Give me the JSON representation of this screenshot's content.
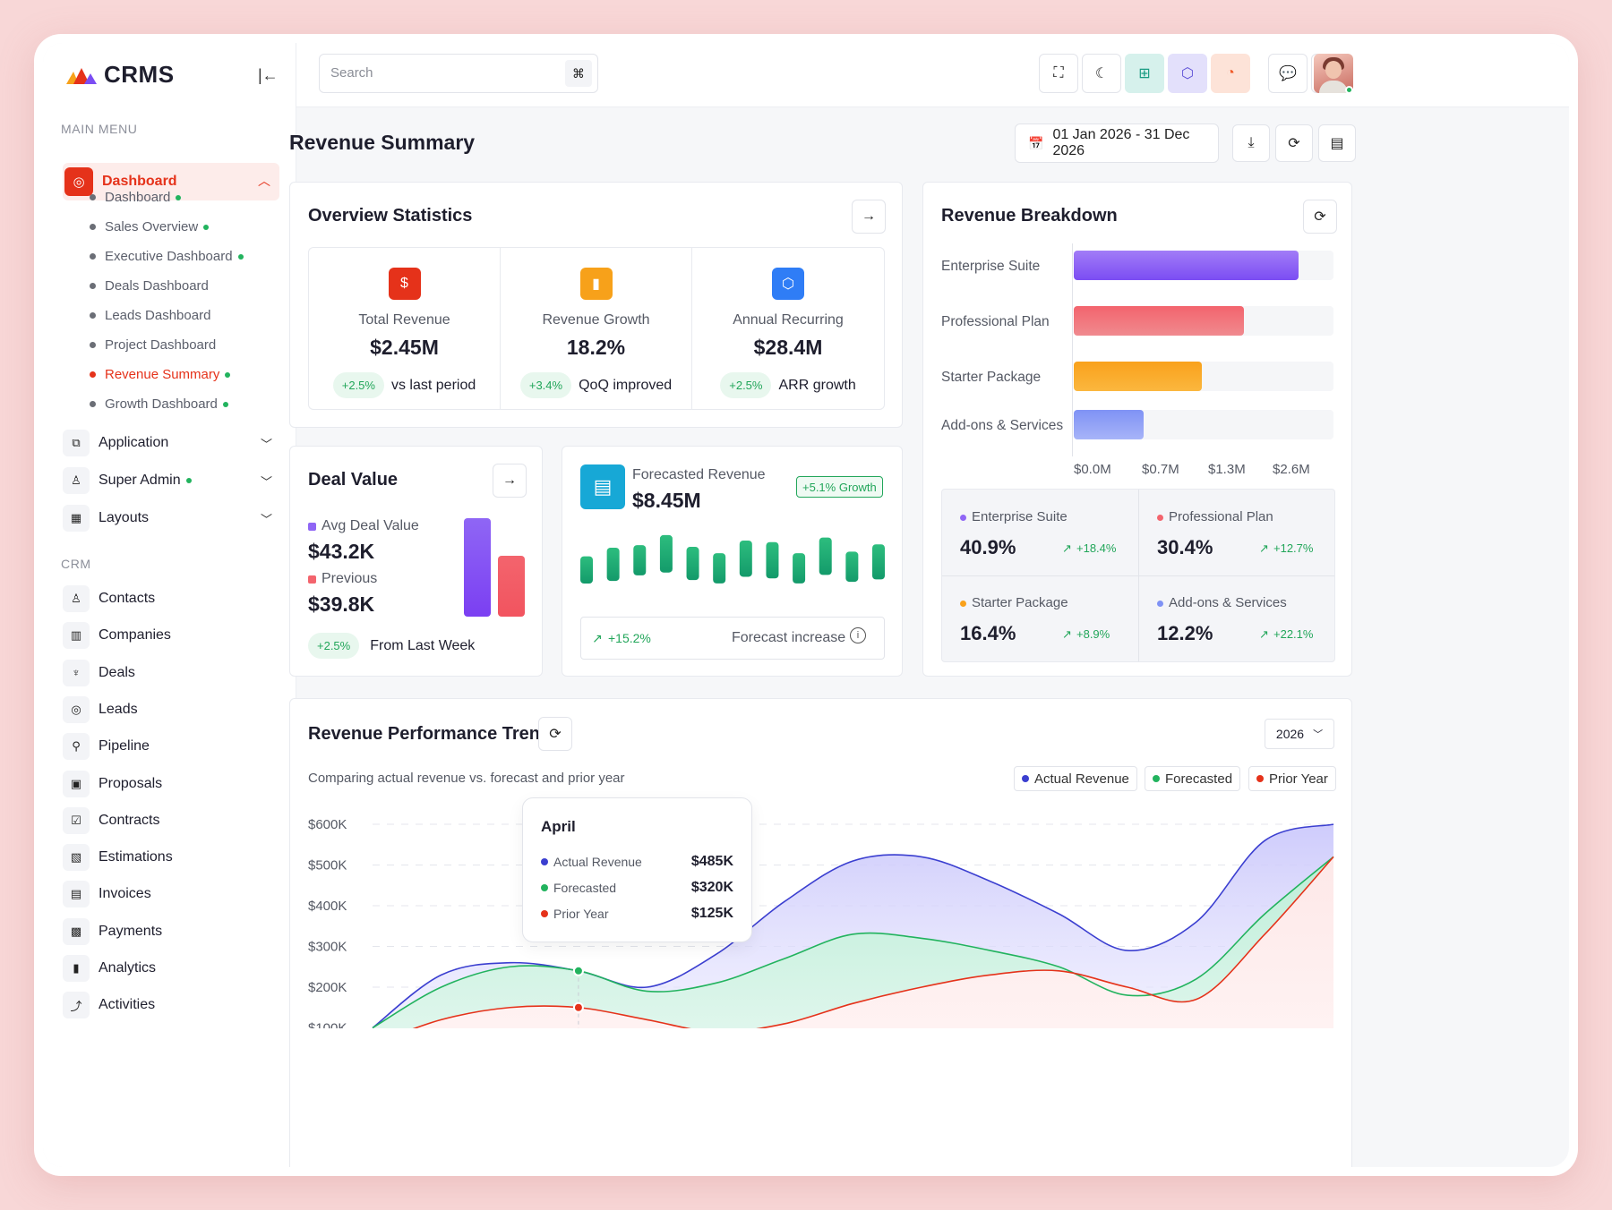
{
  "app": {
    "name": "CRMS"
  },
  "sidebar": {
    "main_menu_label": "MAIN MENU",
    "dashboard_label": "Dashboard",
    "dashboard_sub": [
      {
        "label": "Dashboard",
        "dot": true
      },
      {
        "label": "Sales Overview",
        "dot": true
      },
      {
        "label": "Executive Dashboard",
        "dot": true
      },
      {
        "label": "Deals Dashboard",
        "dot": false
      },
      {
        "label": "Leads Dashboard",
        "dot": false
      },
      {
        "label": "Project Dashboard",
        "dot": false
      },
      {
        "label": "Revenue Summary",
        "dot": true
      },
      {
        "label": "Growth Dashboard",
        "dot": true
      }
    ],
    "groups": [
      {
        "label": "Application"
      },
      {
        "label": "Super Admin"
      },
      {
        "label": "Layouts"
      }
    ],
    "crm_label": "CRM",
    "crm_items": [
      {
        "label": "Contacts",
        "icon": "contacts-icon"
      },
      {
        "label": "Companies",
        "icon": "companies-icon"
      },
      {
        "label": "Deals",
        "icon": "deals-icon"
      },
      {
        "label": "Leads",
        "icon": "leads-icon"
      },
      {
        "label": "Pipeline",
        "icon": "pipeline-icon"
      },
      {
        "label": "Proposals",
        "icon": "proposals-icon"
      },
      {
        "label": "Contracts",
        "icon": "contracts-icon"
      },
      {
        "label": "Estimations",
        "icon": "estimations-icon"
      },
      {
        "label": "Invoices",
        "icon": "invoices-icon"
      },
      {
        "label": "Payments",
        "icon": "payments-icon"
      },
      {
        "label": "Analytics",
        "icon": "analytics-icon"
      },
      {
        "label": "Activities",
        "icon": "activities-icon"
      }
    ]
  },
  "topbar": {
    "search_placeholder": "Search",
    "shortcut": "⌘"
  },
  "page": {
    "title": "Revenue Summary",
    "date_range": "01 Jan 2026 - 31 Dec 2026"
  },
  "overview": {
    "title": "Overview Statistics",
    "stats": [
      {
        "label": "Total Revenue",
        "value": "$2.45M",
        "change": "+2.5%",
        "note": "vs last period",
        "icon": "dollar-icon",
        "color": "#e5321a"
      },
      {
        "label": "Revenue Growth",
        "value": "18.2%",
        "change": "+3.4%",
        "note": "QoQ improved",
        "icon": "bar-chart-icon",
        "color": "#f7a11a"
      },
      {
        "label": "Annual Recurring",
        "value": "$28.4M",
        "change": "+2.5%",
        "note": "ARR growth",
        "icon": "cube-icon",
        "color": "#2f7df6"
      }
    ]
  },
  "deal_value": {
    "title": "Deal Value",
    "avg_label": "Avg Deal Value",
    "avg_value": "$43.2K",
    "prev_label": "Previous",
    "prev_value": "$39.8K",
    "change": "+2.5%",
    "note": "From Last Week",
    "bar_avg": 43.2,
    "bar_prev": 39.8
  },
  "forecast": {
    "label": "Forecasted Revenue",
    "value": "$8.45M",
    "badge": "+5.1% Growth",
    "footer_change": "+15.2%",
    "footer_note": "Forecast increase",
    "bars": [
      0.45,
      0.55,
      0.5,
      0.62,
      0.55,
      0.5,
      0.6,
      0.6,
      0.5,
      0.62,
      0.5,
      0.58
    ],
    "offsets": [
      0.12,
      0.05,
      0.0,
      -0.08,
      0.04,
      0.1,
      -0.02,
      0.0,
      0.1,
      -0.05,
      0.08,
      0.02
    ]
  },
  "breakdown": {
    "title": "Revenue Breakdown",
    "items": [
      {
        "label": "Enterprise Suite",
        "value": 2.25,
        "color1": "#a27cf7",
        "color2": "#7b4df3"
      },
      {
        "label": "Professional Plan",
        "value": 1.7,
        "color1": "#f3646d",
        "color2": "#f08a8f"
      },
      {
        "label": "Starter Package",
        "value": 1.28,
        "color1": "#f9a11b",
        "color2": "#fbb73f"
      },
      {
        "label": "Add-ons & Services",
        "value": 0.7,
        "color1": "#7f92f5",
        "color2": "#a7b4f8"
      }
    ],
    "x_ticks": [
      "$0.0M",
      "$0.7M",
      "$1.3M",
      "$2.6M"
    ],
    "x_max": 2.6,
    "shares": [
      {
        "label": "Enterprise Suite",
        "value": "40.9%",
        "change": "+18.4%",
        "color": "#8f66f5"
      },
      {
        "label": "Professional Plan",
        "value": "30.4%",
        "change": "+12.7%",
        "color": "#f3646d"
      },
      {
        "label": "Starter Package",
        "value": "16.4%",
        "change": "+8.9%",
        "color": "#f9a11b"
      },
      {
        "label": "Add-ons & Services",
        "value": "12.2%",
        "change": "+22.1%",
        "color": "#7f92f5"
      }
    ]
  },
  "trend": {
    "title": "Revenue Performance Trend",
    "subtitle": "Comparing actual revenue vs. forecast and prior year",
    "year": "2026",
    "legend": [
      {
        "label": "Actual Revenue",
        "color": "#3b3fd0"
      },
      {
        "label": "Forecasted",
        "color": "#22b35e"
      },
      {
        "label": "Prior Year",
        "color": "#e5321a"
      }
    ],
    "tooltip": {
      "month": "April",
      "rows": [
        {
          "label": "Actual Revenue",
          "value": "$485K",
          "color": "#3b3fd0"
        },
        {
          "label": "Forecasted",
          "value": "$320K",
          "color": "#22b35e"
        },
        {
          "label": "Prior Year",
          "value": "$125K",
          "color": "#e5321a"
        }
      ]
    },
    "y_ticks": [
      "$600K",
      "$500K",
      "$400K",
      "$300K",
      "$200K",
      "$100K"
    ],
    "y_values": [
      600,
      500,
      400,
      300,
      200,
      100
    ],
    "actual": [
      100,
      230,
      260,
      240,
      200,
      280,
      410,
      510,
      520,
      460,
      380,
      290,
      360,
      560,
      600
    ],
    "forecast": [
      100,
      200,
      250,
      240,
      190,
      210,
      270,
      330,
      320,
      290,
      250,
      180,
      220,
      380,
      520
    ],
    "prior": [
      60,
      120,
      150,
      150,
      120,
      90,
      110,
      160,
      200,
      230,
      240,
      200,
      170,
      330,
      520
    ]
  }
}
